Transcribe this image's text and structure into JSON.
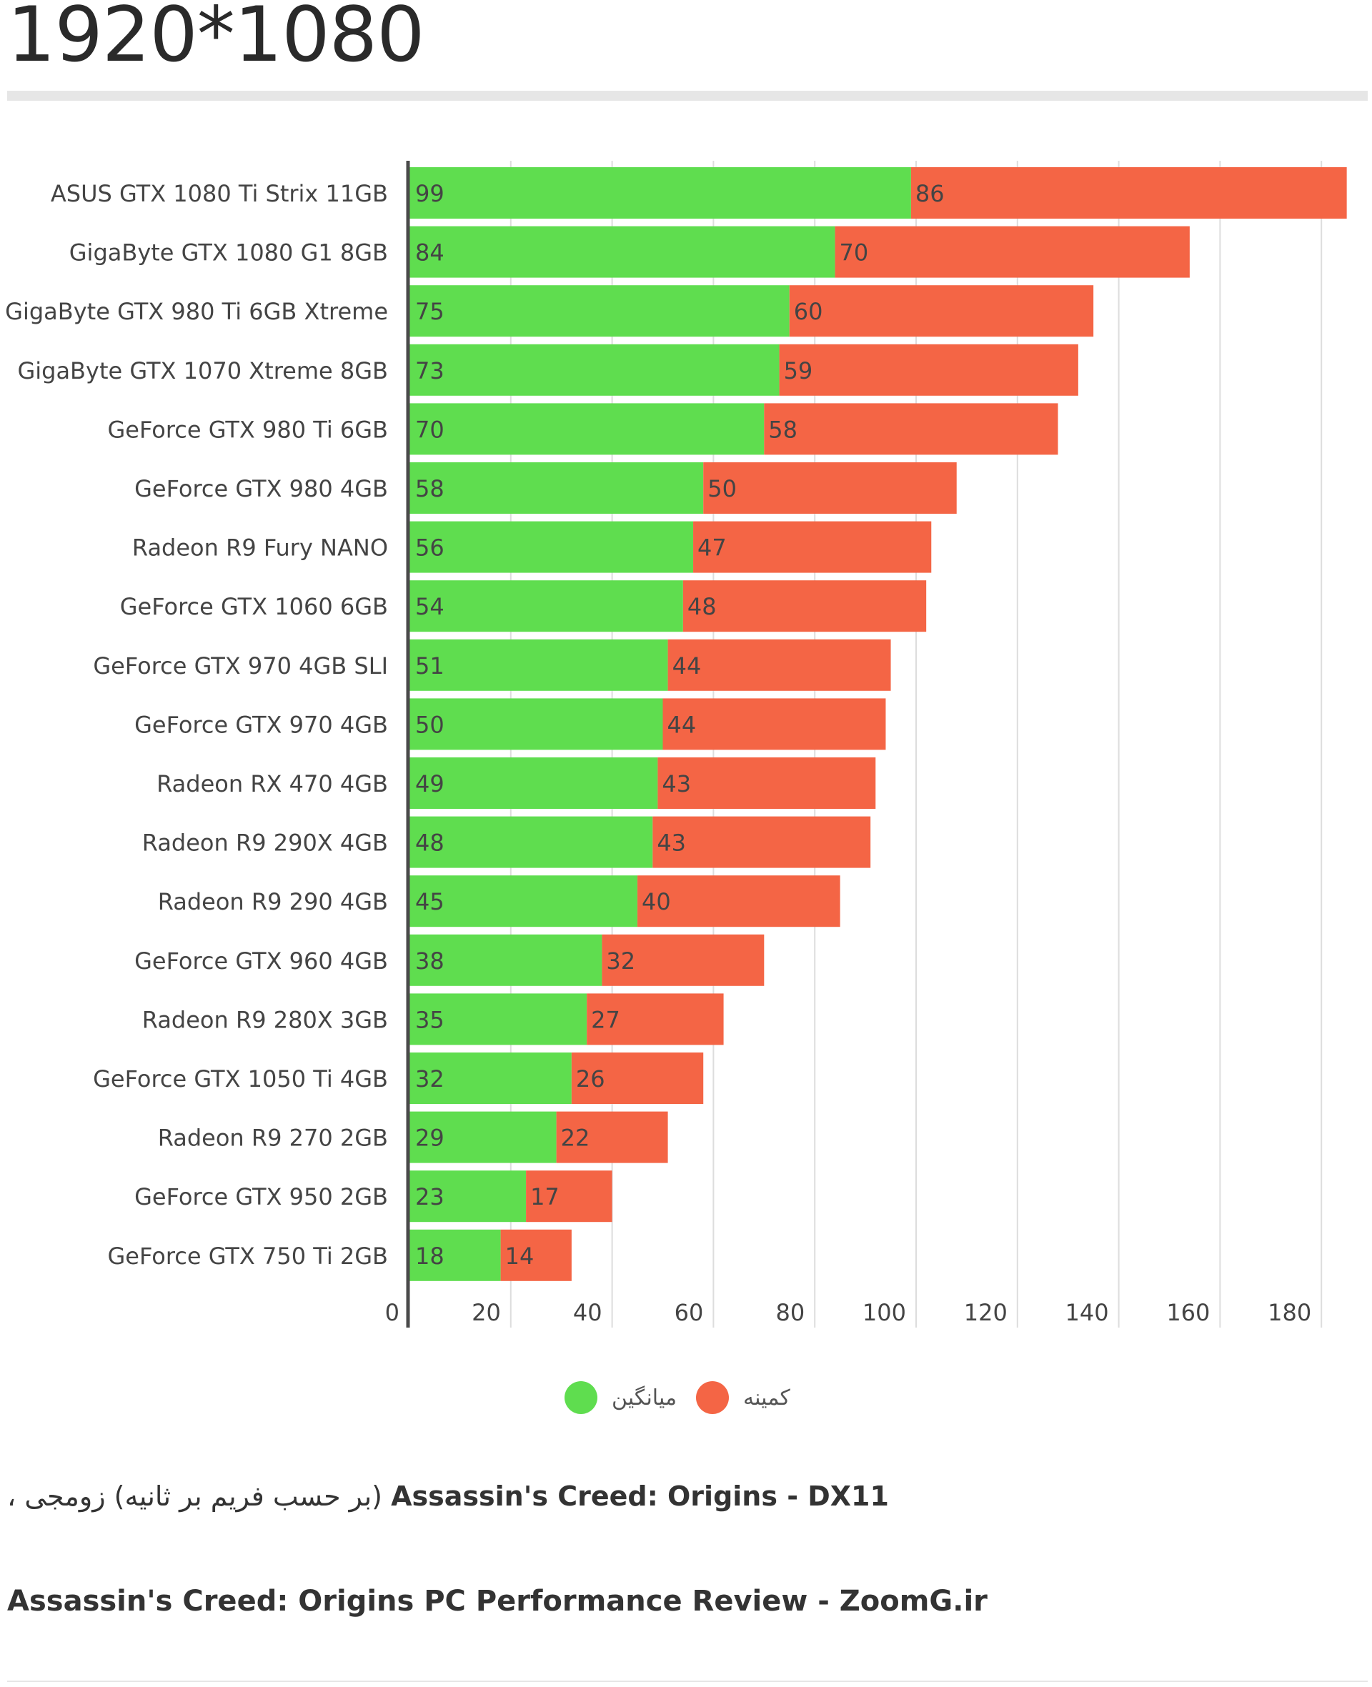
{
  "page": {
    "resolution_title": "1920*1080",
    "caption_english": "Assassin's Creed: Origins - DX11",
    "caption_persian": "(بر حسب فریم بر ثانیه) زومجی ،",
    "source_line": "Assassin's Creed: Origins PC Performance Review - ZoomG.ir"
  },
  "chart_data": {
    "type": "bar",
    "orientation": "horizontal",
    "stacked": true,
    "categories": [
      "ASUS GTX 1080 Ti Strix 11GB",
      "GigaByte GTX 1080 G1 8GB",
      "GigaByte GTX 980 Ti 6GB Xtreme",
      "GigaByte GTX 1070 Xtreme 8GB",
      "GeForce GTX 980 Ti 6GB",
      "GeForce GTX 980 4GB",
      "Radeon R9 Fury NANO",
      "GeForce GTX 1060 6GB",
      "GeForce GTX 970 4GB SLI",
      "GeForce GTX 970 4GB",
      "Radeon RX 470 4GB",
      "Radeon R9 290X 4GB",
      "Radeon R9 290 4GB",
      "GeForce GTX 960 4GB",
      "Radeon R9 280X 3GB",
      "GeForce GTX 1050 Ti 4GB",
      "Radeon R9 270 2GB",
      "GeForce GTX 950 2GB",
      "GeForce GTX 750 Ti 2GB"
    ],
    "series": [
      {
        "name": "میانگین",
        "color": "#5fdd4f",
        "values": [
          99,
          84,
          75,
          73,
          70,
          58,
          56,
          54,
          51,
          50,
          49,
          48,
          45,
          38,
          35,
          32,
          29,
          23,
          18
        ]
      },
      {
        "name": "کمینه",
        "color": "#f46545",
        "values": [
          86,
          70,
          60,
          59,
          58,
          50,
          47,
          48,
          44,
          44,
          43,
          43,
          40,
          32,
          27,
          26,
          22,
          17,
          14
        ]
      }
    ],
    "xlim": [
      0,
      180
    ],
    "xticks": [
      0,
      20,
      40,
      60,
      80,
      100,
      120,
      140,
      160,
      180
    ],
    "grid": true,
    "legend_position": "bottom-center"
  }
}
